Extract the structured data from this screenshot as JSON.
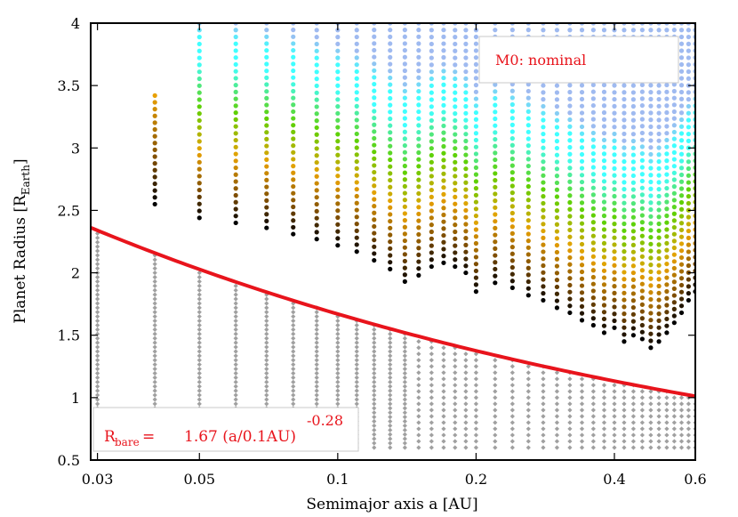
{
  "chart_data": {
    "type": "scatter",
    "xlabel": "Semimajor axis a [AU]",
    "ylabel_main": "Planet Radius [R",
    "ylabel_sub": "Earth",
    "ylabel_close": "]",
    "xscale": "log",
    "xlim": [
      0.029,
      0.6
    ],
    "ylim": [
      0.5,
      4
    ],
    "xticks": [
      {
        "v": 0.03,
        "label": "0.03"
      },
      {
        "v": 0.05,
        "label": "0.05"
      },
      {
        "v": 0.1,
        "label": "0.1"
      },
      {
        "v": 0.2,
        "label": "0.2"
      },
      {
        "v": 0.4,
        "label": "0.4"
      },
      {
        "v": 0.6,
        "label": "0.6"
      }
    ],
    "yticks": [
      {
        "v": 0.5,
        "label": "0.5"
      },
      {
        "v": 1,
        "label": "1"
      },
      {
        "v": 1.5,
        "label": "1.5"
      },
      {
        "v": 2,
        "label": "2"
      },
      {
        "v": 2.5,
        "label": "2.5"
      },
      {
        "v": 3,
        "label": "3"
      },
      {
        "v": 3.5,
        "label": "3.5"
      },
      {
        "v": 4,
        "label": "4"
      }
    ],
    "semimajor_axes": [
      0.03,
      0.04,
      0.05,
      0.06,
      0.07,
      0.08,
      0.09,
      0.1,
      0.11,
      0.12,
      0.13,
      0.14,
      0.15,
      0.16,
      0.17,
      0.18,
      0.19,
      0.2,
      0.22,
      0.24,
      0.26,
      0.28,
      0.3,
      0.32,
      0.34,
      0.36,
      0.38,
      0.4,
      0.42,
      0.44,
      0.46,
      0.48,
      0.5,
      0.52,
      0.54,
      0.56,
      0.58,
      0.6
    ],
    "colored_series": [
      {
        "a": 0.04,
        "rmin": 2.55,
        "rmax": 3.42,
        "top_color": "#e8a000"
      },
      {
        "a": 0.05,
        "rmin": 2.44,
        "rmax": 4.0,
        "top_color": "#40ffff"
      },
      {
        "a": 0.06,
        "rmin": 2.4,
        "rmax": 4.0,
        "top_color": "#40ffff"
      },
      {
        "a": 0.07,
        "rmin": 2.36,
        "rmax": 4.0,
        "top_color": "#40ffff"
      },
      {
        "a": 0.08,
        "rmin": 2.31,
        "rmax": 4.0,
        "top_color": "#40ffff"
      },
      {
        "a": 0.09,
        "rmin": 2.27,
        "rmax": 4.0,
        "top_color": "#40ffff"
      },
      {
        "a": 0.1,
        "rmin": 2.22,
        "rmax": 4.0,
        "top_color": "#40ffff"
      },
      {
        "a": 0.11,
        "rmin": 2.17,
        "rmax": 4.0,
        "top_color": "#40ffff"
      },
      {
        "a": 0.12,
        "rmin": 2.1,
        "rmax": 4.0,
        "top_color": "#40ffff"
      },
      {
        "a": 0.13,
        "rmin": 2.03,
        "rmax": 4.0,
        "top_color": "#9fbaf0"
      },
      {
        "a": 0.14,
        "rmin": 1.93,
        "rmax": 4.0,
        "top_color": "#9fbaf0"
      },
      {
        "a": 0.15,
        "rmin": 1.98,
        "rmax": 4.0,
        "top_color": "#9fbaf0"
      },
      {
        "a": 0.16,
        "rmin": 2.05,
        "rmax": 4.0,
        "top_color": "#9fbaf0"
      },
      {
        "a": 0.17,
        "rmin": 2.08,
        "rmax": 4.0,
        "top_color": "#9fbaf0"
      },
      {
        "a": 0.18,
        "rmin": 2.05,
        "rmax": 4.0,
        "top_color": "#9fbaf0"
      },
      {
        "a": 0.19,
        "rmin": 2.0,
        "rmax": 4.0,
        "top_color": "#9fbaf0"
      },
      {
        "a": 0.2,
        "rmin": 1.85,
        "rmax": 4.0,
        "top_color": "#9fbaf0"
      },
      {
        "a": 0.22,
        "rmin": 1.92,
        "rmax": 4.0,
        "top_color": "#9fbaf0"
      },
      {
        "a": 0.24,
        "rmin": 1.88,
        "rmax": 4.0,
        "top_color": "#9fbaf0"
      },
      {
        "a": 0.26,
        "rmin": 1.82,
        "rmax": 4.0,
        "top_color": "#9fbaf0"
      },
      {
        "a": 0.28,
        "rmin": 1.78,
        "rmax": 4.0,
        "top_color": "#9fbaf0"
      },
      {
        "a": 0.3,
        "rmin": 1.72,
        "rmax": 4.0,
        "top_color": "#9fbaf0"
      },
      {
        "a": 0.32,
        "rmin": 1.68,
        "rmax": 4.0,
        "top_color": "#9fbaf0"
      },
      {
        "a": 0.34,
        "rmin": 1.62,
        "rmax": 4.0,
        "top_color": "#9fbaf0"
      },
      {
        "a": 0.36,
        "rmin": 1.58,
        "rmax": 4.0,
        "top_color": "#9fbaf0"
      },
      {
        "a": 0.38,
        "rmin": 1.52,
        "rmax": 4.0,
        "top_color": "#9fbaf0"
      },
      {
        "a": 0.4,
        "rmin": 1.56,
        "rmax": 4.0,
        "top_color": "#9fbaf0"
      },
      {
        "a": 0.42,
        "rmin": 1.45,
        "rmax": 4.0,
        "top_color": "#9fbaf0"
      },
      {
        "a": 0.44,
        "rmin": 1.5,
        "rmax": 4.0,
        "top_color": "#9fbaf0"
      },
      {
        "a": 0.46,
        "rmin": 1.47,
        "rmax": 4.0,
        "top_color": "#9fbaf0"
      },
      {
        "a": 0.48,
        "rmin": 1.4,
        "rmax": 4.0,
        "top_color": "#9fbaf0"
      },
      {
        "a": 0.5,
        "rmin": 1.45,
        "rmax": 4.0,
        "top_color": "#9fbaf0"
      },
      {
        "a": 0.52,
        "rmin": 1.52,
        "rmax": 4.0,
        "top_color": "#9fbaf0"
      },
      {
        "a": 0.54,
        "rmin": 1.6,
        "rmax": 4.0,
        "top_color": "#9fbaf0"
      },
      {
        "a": 0.56,
        "rmin": 1.68,
        "rmax": 4.0,
        "top_color": "#9fbaf0"
      },
      {
        "a": 0.58,
        "rmin": 1.78,
        "rmax": 4.0,
        "top_color": "#9fbaf0"
      },
      {
        "a": 0.6,
        "rmin": 1.85,
        "rmax": 4.0,
        "top_color": "#9fbaf0"
      }
    ],
    "bare_cores": {
      "rmin": 0.6,
      "color": "#a0a0a0"
    },
    "fit_curve": {
      "coefficient": 1.67,
      "exponent": -0.28,
      "a0": 0.1,
      "color": "#e8141c"
    },
    "colors": {
      "black": "#000000",
      "brown": "#7a4a00",
      "orange": "#e8a000",
      "green": "#5fd000",
      "cyan": "#40ffff",
      "lightblue": "#9fbaf0",
      "grey": "#a0a0a0",
      "red": "#e8141c"
    }
  },
  "legend": {
    "model_label": "M0: nominal"
  },
  "formula": {
    "r_main": "R",
    "r_sub": "bare",
    "eq": "=",
    "coefficient": "1.67 (a/0.1AU)",
    "exponent": "-0.28"
  }
}
